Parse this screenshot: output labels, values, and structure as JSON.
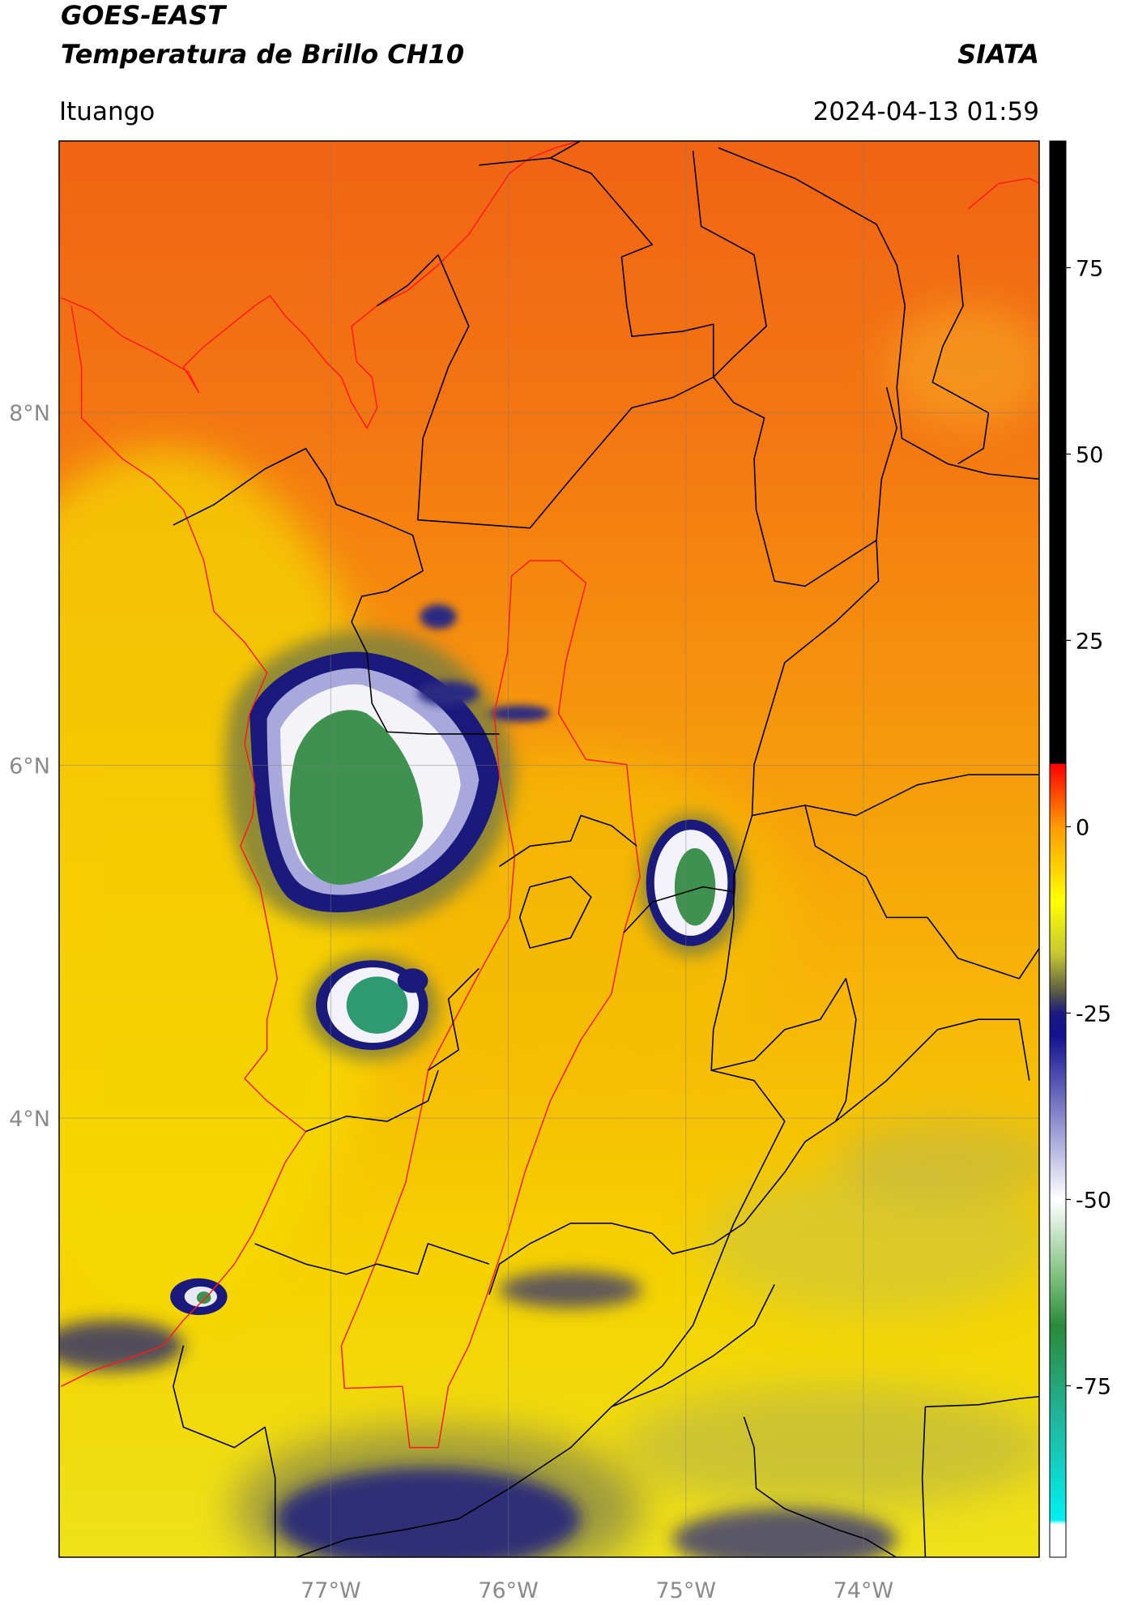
{
  "header": {
    "satellite": "GOES-EAST",
    "product": "Temperatura de Brillo CH10",
    "source": "SIATA",
    "location": "Ituango",
    "datetime": "2024-04-13 01:59"
  },
  "map": {
    "xlim": [
      -78.53,
      -73.01
    ],
    "ylim": [
      1.51,
      9.54
    ],
    "xticks": [
      {
        "value": -77,
        "label": "77°W"
      },
      {
        "value": -76,
        "label": "76°W"
      },
      {
        "value": -75,
        "label": "75°W"
      },
      {
        "value": -74,
        "label": "74°W"
      }
    ],
    "yticks": [
      {
        "value": 8,
        "label": "8°N"
      },
      {
        "value": 6,
        "label": "6°N"
      },
      {
        "value": 4,
        "label": "4°N"
      }
    ],
    "grid": true
  },
  "colorbar": {
    "clim": [
      -98,
      92
    ],
    "ticks": [
      75,
      50,
      25,
      0,
      -25,
      -50,
      -75
    ],
    "stops": [
      {
        "value": 92,
        "color": "#000000"
      },
      {
        "value": 8.5,
        "color": "#000000"
      },
      {
        "value": 8.4,
        "color": "#ff0000"
      },
      {
        "value": 4,
        "color": "#ff5200"
      },
      {
        "value": 0,
        "color": "#ff9a00"
      },
      {
        "value": -10,
        "color": "#ffff00"
      },
      {
        "value": -17,
        "color": "#c8c832"
      },
      {
        "value": -22,
        "color": "#5e5e44"
      },
      {
        "value": -25,
        "color": "#1a1a80"
      },
      {
        "value": -28,
        "color": "#121290"
      },
      {
        "value": -40,
        "color": "#9494d2"
      },
      {
        "value": -50,
        "color": "#ffffff"
      },
      {
        "value": -60,
        "color": "#84c284"
      },
      {
        "value": -67,
        "color": "#2a8a3a"
      },
      {
        "value": -80,
        "color": "#20b8a0"
      },
      {
        "value": -93,
        "color": "#00f0f0"
      },
      {
        "value": -93.6,
        "color": "#ffffff"
      },
      {
        "value": -98,
        "color": "#ffffff"
      }
    ]
  }
}
